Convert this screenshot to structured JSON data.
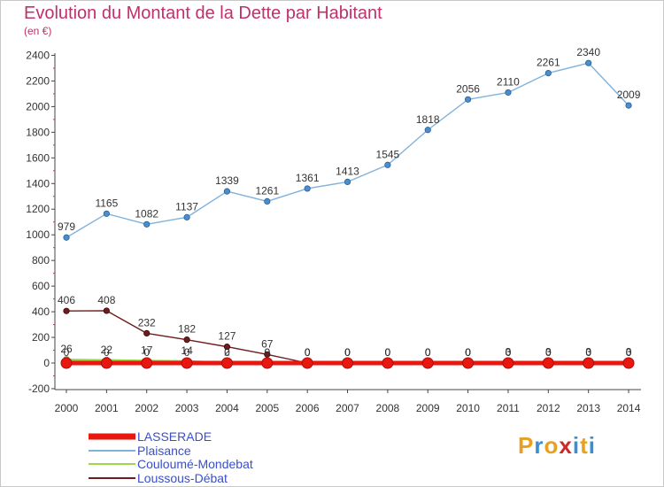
{
  "header": {
    "title": "Evolution du Montant de la Dette par Habitant",
    "subtitle": "(en €)"
  },
  "logo": {
    "text": "Proxiti",
    "colors": [
      "#e8a020",
      "#3a8fd0",
      "#e8a020",
      "#d02828",
      "#3a8fd0",
      "#e8a020",
      "#3a8fd0"
    ]
  },
  "chart_data": {
    "type": "line",
    "x": [
      "2000",
      "2001",
      "2002",
      "2003",
      "2004",
      "2005",
      "2006",
      "2007",
      "2008",
      "2009",
      "2010",
      "2011",
      "2012",
      "2013",
      "2014"
    ],
    "ylim": [
      -200,
      2400
    ],
    "yticks": [
      -200,
      0,
      200,
      400,
      600,
      800,
      1000,
      1200,
      1400,
      1600,
      1800,
      2000,
      2200,
      2400
    ],
    "grid": false,
    "legend_position": "bottom-left",
    "series": [
      {
        "name": "LASSERADE",
        "color": "#e8170f",
        "values": [
          0,
          0,
          0,
          0,
          0,
          0,
          0,
          0,
          0,
          0,
          0,
          0,
          0,
          0,
          0
        ],
        "labels": [
          "0",
          "0",
          "0",
          "0",
          "0",
          "0",
          "0",
          "0",
          "0",
          "0",
          "0",
          "0",
          "0",
          "0",
          "0"
        ]
      },
      {
        "name": "Plaisance",
        "color": "#7fb2dc",
        "values": [
          979,
          1165,
          1082,
          1137,
          1339,
          1261,
          1361,
          1413,
          1545,
          1818,
          2056,
          2110,
          2261,
          2340,
          2009
        ],
        "labels": [
          "979",
          "1165",
          "1082",
          "1137",
          "1339",
          "1261",
          "1361",
          "1413",
          "1545",
          "1818",
          "2056",
          "2110",
          "2261",
          "2340",
          "2009"
        ]
      },
      {
        "name": "Couloumé-Mondebat",
        "color": "#9ad84a",
        "values": [
          26,
          22,
          17,
          14,
          2,
          0,
          0,
          0,
          0,
          0,
          0,
          0,
          0,
          0,
          0
        ],
        "labels": [
          "26",
          "22",
          "17",
          "14",
          "2",
          "0",
          "0",
          "0",
          "0",
          "0",
          "0",
          "0",
          "0",
          "0",
          "0"
        ]
      },
      {
        "name": "Loussous-Débat",
        "color": "#6e1c1c",
        "values": [
          406,
          408,
          232,
          182,
          127,
          67,
          0,
          0,
          0,
          0,
          0,
          3,
          3,
          3,
          3
        ],
        "labels": [
          "406",
          "408",
          "232",
          "182",
          "127",
          "67",
          "0",
          "0",
          "0",
          "0",
          "0",
          "3",
          "3",
          "3",
          "3"
        ]
      }
    ]
  }
}
